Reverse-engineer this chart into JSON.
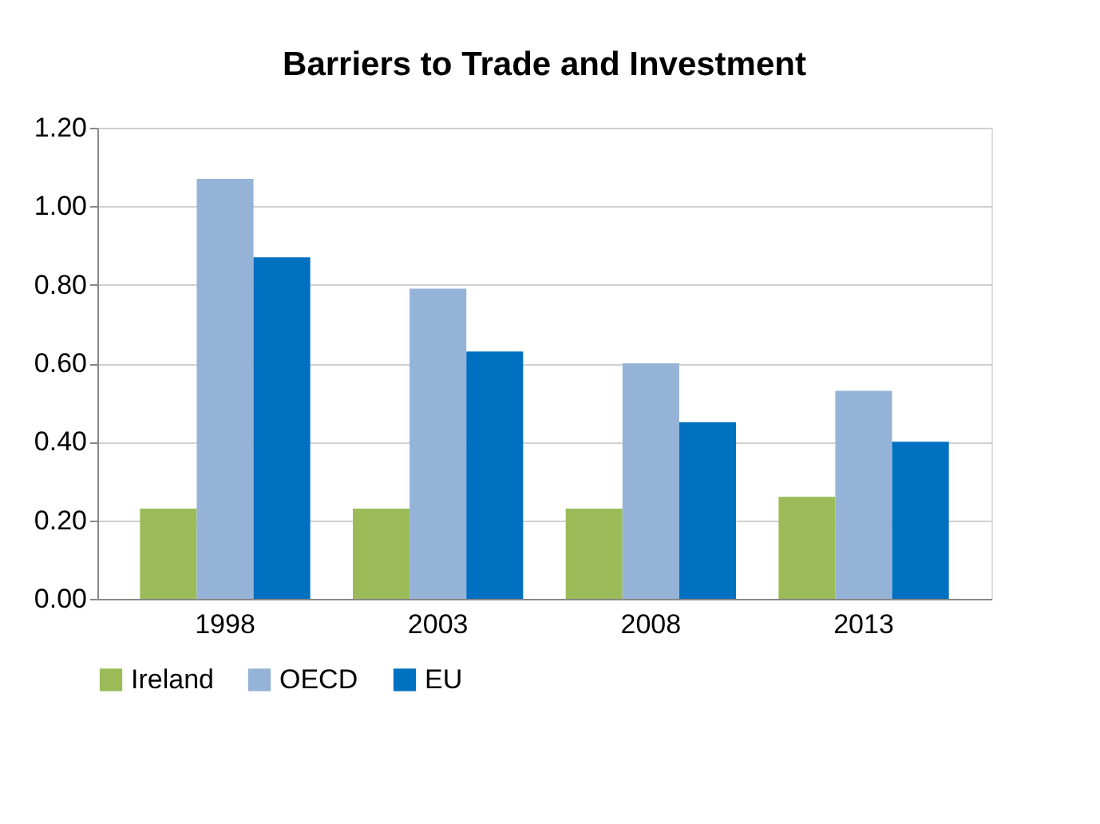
{
  "chart_data": {
    "type": "bar",
    "title": "Barriers to Trade and Investment",
    "categories": [
      "1998",
      "2003",
      "2008",
      "2013"
    ],
    "series": [
      {
        "name": "Ireland",
        "color": "#9bbb59",
        "values": [
          0.23,
          0.23,
          0.23,
          0.26
        ]
      },
      {
        "name": "OECD",
        "color": "#95b3d7",
        "values": [
          1.07,
          0.79,
          0.6,
          0.53
        ]
      },
      {
        "name": "EU",
        "color": "#0070c0",
        "values": [
          0.87,
          0.63,
          0.45,
          0.4
        ]
      }
    ],
    "ylim": [
      0,
      1.2
    ],
    "yticks": [
      {
        "value": 0,
        "label": "0.00"
      },
      {
        "value": 0.2,
        "label": "0.20"
      },
      {
        "value": 0.4,
        "label": "0.40"
      },
      {
        "value": 0.6,
        "label": "0.60"
      },
      {
        "value": 0.8,
        "label": "0.80"
      },
      {
        "value": 1.0,
        "label": "1.00"
      },
      {
        "value": 1.2,
        "label": "1.20"
      }
    ],
    "grid": "y",
    "legend": "bottom"
  }
}
